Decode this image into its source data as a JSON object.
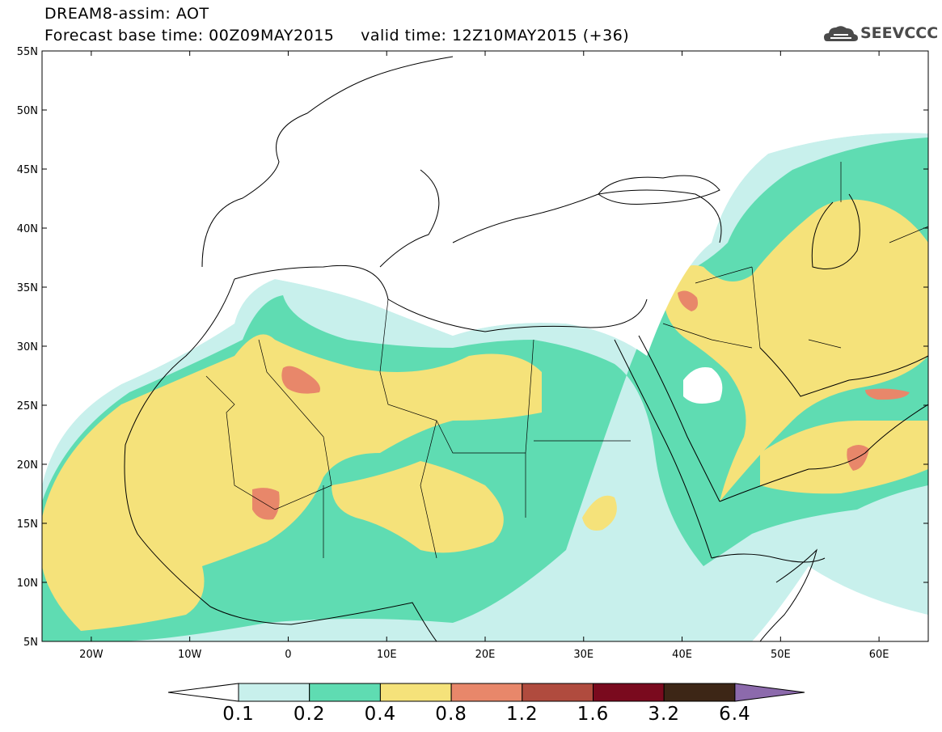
{
  "header": {
    "line1": "DREAM8-assim: AOT",
    "line2": "Forecast base time: 00Z09MAY2015     valid time: 12Z10MAY2015 (+36)",
    "logo_text": "SEEVCCC",
    "logo_icon": "cloud-icon"
  },
  "map": {
    "lat_labels": [
      "55N",
      "50N",
      "45N",
      "40N",
      "35N",
      "30N",
      "25N",
      "20N",
      "15N",
      "10N",
      "5N"
    ],
    "lon_labels": [
      "20W",
      "10W",
      "0",
      "10E",
      "20E",
      "30E",
      "40E",
      "50E",
      "60E"
    ],
    "lat_range": [
      5,
      55
    ],
    "lon_range": [
      -25,
      65
    ]
  },
  "colorbar": {
    "levels": [
      "0.1",
      "0.2",
      "0.4",
      "0.8",
      "1.2",
      "1.6",
      "3.2",
      "6.4"
    ],
    "colors": [
      "#ffffff",
      "#c8f0ec",
      "#5fdcb2",
      "#f5e27a",
      "#e8876a",
      "#b04b3e",
      "#7a0a1e",
      "#3d2616",
      "#8c6aac"
    ]
  },
  "palette": {
    "c1": "#c8f0ec",
    "c2": "#5fdcb2",
    "c3": "#f5e27a",
    "c4": "#e8876a",
    "c5": "#b04b3e"
  }
}
